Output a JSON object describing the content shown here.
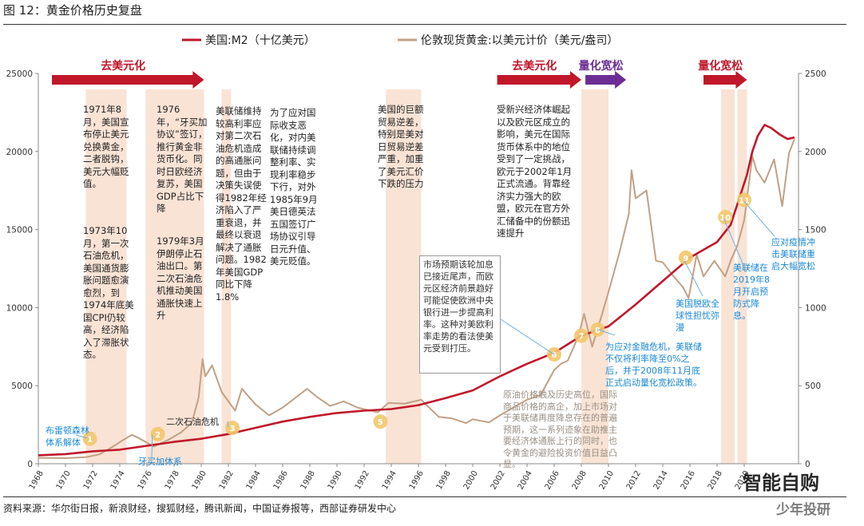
{
  "figure_title": "图 12：黄金价格历史复盘",
  "source": "资料来源：华尔街日报，新浪财经，搜狐财经，腾讯新闻，中国证券报等，西部证券研发中心",
  "watermark": {
    "logo": "智能自购",
    "sub": "少年投研",
    "url": "www.znl.com"
  },
  "chart_data": {
    "type": "line",
    "legend_position": "top",
    "colors": {
      "m2": "#c0172a",
      "gold": "#c1a085",
      "shade": "#f7dccb",
      "red_arrow": "#c0172a",
      "purple_arrow": "#6b2d94",
      "marker": "#f2c66b"
    },
    "x_ticks": [
      "1968",
      "1970",
      "1972",
      "1974",
      "1976",
      "1978",
      "1980",
      "1982",
      "1984",
      "1986",
      "1988",
      "1990",
      "1992",
      "1994",
      "1996",
      "1998",
      "2000",
      "2002",
      "2004",
      "2006",
      "2008",
      "2010",
      "2012",
      "2014",
      "2016",
      "2018",
      "2020"
    ],
    "y_left": {
      "min": 0,
      "max": 25000,
      "ticks": [
        "0",
        "5000",
        "10000",
        "15000",
        "20000",
        "25000"
      ]
    },
    "y_right": {
      "min": 0,
      "max": 2500,
      "ticks": [
        "0",
        "500",
        "1000",
        "1500",
        "2000",
        "2500"
      ]
    },
    "series": [
      {
        "name": "美国:M2（十亿美元）",
        "axis": "left",
        "points": [
          [
            1968,
            540
          ],
          [
            1970,
            620
          ],
          [
            1972,
            800
          ],
          [
            1974,
            900
          ],
          [
            1976,
            1150
          ],
          [
            1978,
            1400
          ],
          [
            1980,
            1600
          ],
          [
            1982,
            1900
          ],
          [
            1984,
            2300
          ],
          [
            1986,
            2700
          ],
          [
            1988,
            3000
          ],
          [
            1990,
            3250
          ],
          [
            1992,
            3400
          ],
          [
            1994,
            3500
          ],
          [
            1996,
            3750
          ],
          [
            1998,
            4200
          ],
          [
            2000,
            4700
          ],
          [
            2002,
            5600
          ],
          [
            2004,
            6400
          ],
          [
            2006,
            7100
          ],
          [
            2008,
            8200
          ],
          [
            2010,
            8800
          ],
          [
            2012,
            10200
          ],
          [
            2014,
            11700
          ],
          [
            2016,
            13200
          ],
          [
            2018,
            14200
          ],
          [
            2019,
            15300
          ],
          [
            2020.2,
            18500
          ],
          [
            2020.6,
            20000
          ],
          [
            2021,
            21000
          ],
          [
            2021.5,
            21700
          ],
          [
            2022,
            21500
          ],
          [
            2022.6,
            21100
          ],
          [
            2023.2,
            20800
          ],
          [
            2023.7,
            20900
          ]
        ]
      },
      {
        "name": "伦敦现货黄金:以美元计价（美元/盎司）",
        "axis": "right",
        "points": [
          [
            1968,
            38
          ],
          [
            1970,
            36
          ],
          [
            1971.5,
            42
          ],
          [
            1972.5,
            60
          ],
          [
            1973.5,
            110
          ],
          [
            1974.3,
            155
          ],
          [
            1974.9,
            185
          ],
          [
            1975.5,
            160
          ],
          [
            1976.5,
            110
          ],
          [
            1977.5,
            150
          ],
          [
            1978.5,
            200
          ],
          [
            1979.3,
            260
          ],
          [
            1979.8,
            420
          ],
          [
            1980.1,
            670
          ],
          [
            1980.3,
            560
          ],
          [
            1980.8,
            630
          ],
          [
            1981.5,
            460
          ],
          [
            1982.5,
            340
          ],
          [
            1983,
            480
          ],
          [
            1984,
            380
          ],
          [
            1985,
            310
          ],
          [
            1986,
            360
          ],
          [
            1987.8,
            480
          ],
          [
            1988.5,
            430
          ],
          [
            1989.5,
            370
          ],
          [
            1990.5,
            400
          ],
          [
            1991.5,
            360
          ],
          [
            1993,
            330
          ],
          [
            1993.8,
            390
          ],
          [
            1995,
            385
          ],
          [
            1996.2,
            410
          ],
          [
            1997.5,
            300
          ],
          [
            1998.5,
            290
          ],
          [
            1999.5,
            260
          ],
          [
            2000,
            285
          ],
          [
            2001.2,
            265
          ],
          [
            2002,
            310
          ],
          [
            2003,
            360
          ],
          [
            2004,
            410
          ],
          [
            2005,
            440
          ],
          [
            2006,
            600
          ],
          [
            2006.5,
            640
          ],
          [
            2007,
            660
          ],
          [
            2007.8,
            820
          ],
          [
            2008.2,
            960
          ],
          [
            2008.8,
            750
          ],
          [
            2009.5,
            950
          ],
          [
            2010,
            1100
          ],
          [
            2010.8,
            1350
          ],
          [
            2011.5,
            1600
          ],
          [
            2011.7,
            1880
          ],
          [
            2012,
            1700
          ],
          [
            2012.8,
            1750
          ],
          [
            2013.5,
            1300
          ],
          [
            2014,
            1290
          ],
          [
            2014.8,
            1200
          ],
          [
            2015.5,
            1130
          ],
          [
            2015.9,
            1060
          ],
          [
            2016.5,
            1340
          ],
          [
            2017,
            1200
          ],
          [
            2017.8,
            1300
          ],
          [
            2018.6,
            1200
          ],
          [
            2019,
            1300
          ],
          [
            2019.5,
            1400
          ],
          [
            2020,
            1560
          ],
          [
            2020.6,
            1970
          ],
          [
            2020.9,
            1880
          ],
          [
            2021.5,
            1800
          ],
          [
            2022.2,
            1950
          ],
          [
            2022.8,
            1650
          ],
          [
            2023.3,
            1990
          ],
          [
            2023.7,
            2080
          ]
        ]
      }
    ],
    "shaded_periods": [
      [
        1971.5,
        1974.5
      ],
      [
        1975.9,
        1980.2
      ],
      [
        1981.5,
        1982.2
      ],
      [
        1993.6,
        1996.2
      ],
      [
        2008.0,
        2010.0
      ],
      [
        2018.3,
        2019.3
      ],
      [
        2019.5,
        2020.2
      ]
    ],
    "arrows": [
      {
        "label": "去美元化",
        "start": 1969.0,
        "end": 1980.2,
        "color": "red"
      },
      {
        "label": "去美元化",
        "start": 2001.8,
        "end": 2008.0,
        "color": "red"
      },
      {
        "label": "量化宽松",
        "start": 2008.3,
        "end": 2011.3,
        "color": "purple"
      },
      {
        "label": "量化宽松",
        "start": 2017.0,
        "end": 2020.2,
        "color": "red"
      }
    ],
    "markers": [
      {
        "label": "1",
        "x": 1971.8,
        "y": 160
      },
      {
        "label": "2",
        "x": 1976.8,
        "y": 190
      },
      {
        "label": "3",
        "x": 1982.3,
        "y": 230
      },
      {
        "label": "5",
        "x": 1993.2,
        "y": 270
      },
      {
        "label": "6",
        "x": 2006.0,
        "y": 700
      },
      {
        "label": "7",
        "x": 2008.0,
        "y": 820
      },
      {
        "label": "8",
        "x": 2009.2,
        "y": 860
      },
      {
        "label": "9",
        "x": 2015.7,
        "y": 1320
      },
      {
        "label": "10",
        "x": 2018.6,
        "y": 1580
      },
      {
        "label": "11",
        "x": 2020.0,
        "y": 1690
      }
    ],
    "annotations": {
      "a1": "1971年8月，美国宣布停止美元兑换黄金，二者脱钩，美元大幅贬值。",
      "a1b": "1973年10月，第一次石油危机，美国通货膨胀问题愈演愈烈，到1974年底美国CPI仍较高，经济陷入了滞胀状态。",
      "a2": "1976年，“牙买加协议”签订，推行黄金非货币化。同时日欧经济复苏，美国GDP占比下降",
      "a2b": "1979年3月伊朗停止石油出口。第二次石油危机推动美国通胀快速上升",
      "a3": "美联储维持较高利率应对第二次石油危机造成的高通胀问题，但由于决策失误使得1982年经济陷入了严重衰退，并最终以衰退解决了通胀问题。1982年美国GDP同比下降1.8%",
      "a4": "为了应对国际收支恶化，对内美联储持续调整利率、实现利率稳步下行，对外1985年9月美日德英法五国签订广场协议引导日元升值、美元贬值。",
      "a5": "美国的巨额贸易逆差，特别是美对日贸易逆差严重，加重了美元汇价下跌的压力",
      "a6": "受新兴经济体崛起以及欧元区成立的影响，美元在国际货币体系中的地位受到了一定挑战，欧元于2002年1月正式流通。背靠经济实力强大的欧盟，欧元在官方外汇储备中的份额迅速提升",
      "box": "市场预期该轮加息已接近尾声，而欧元区经济前景趋好可能促使欧洲中央银行进一步提高利率。这种对美欧利率走势的看法使美元受到打压。",
      "faded": "原油价格触及历史高位，国际商品价格的高企，加上市场对于美联储再度降息存在的普遍预期，这一系列迹象在助推主要经济体通胀上行的同时，也令黄金的避险投资价值日益凸显。",
      "b1": "布雷顿森林体系解体",
      "b2": "牙买加体系",
      "b_oil": "二次石油危机",
      "b8": "为应对金融危机，美联储不仅将利率降至0%之后，并于2008年11月底正式启动量化宽松政策。",
      "b9": "美国脱欧全球性担忧弥漫",
      "b10": "美联储在2019年8月开启预防式降息。",
      "b11": "应对疫情冲击美联储重启大幅宽松"
    }
  }
}
